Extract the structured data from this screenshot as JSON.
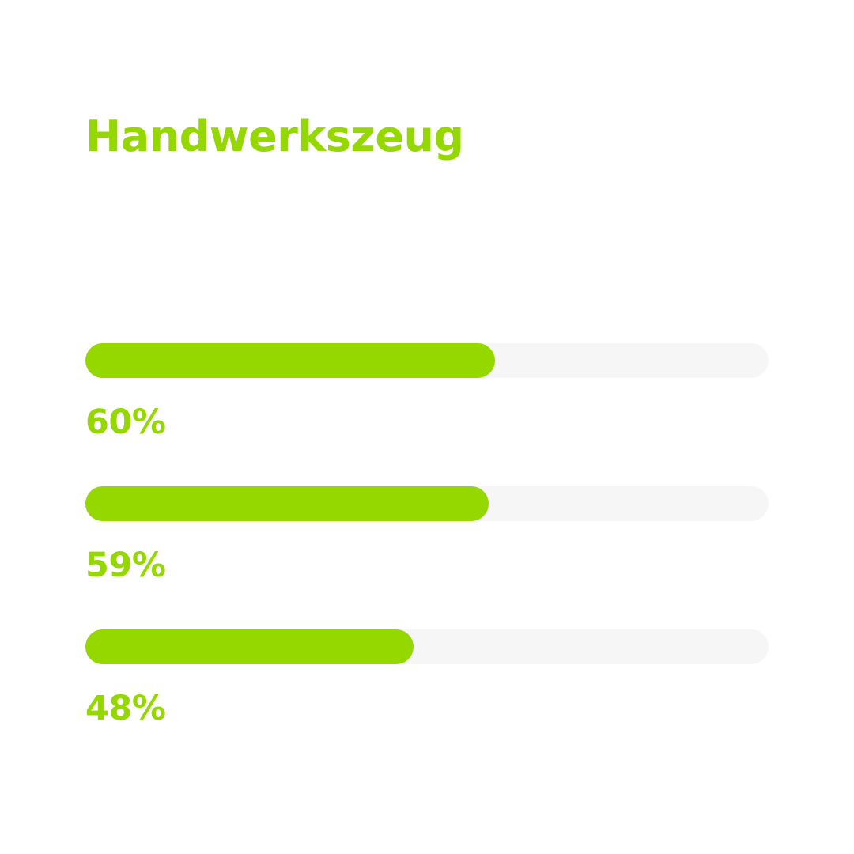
{
  "title": "Handwerkszeug",
  "colors": {
    "accent": "#95d800",
    "track": "#f6f6f6",
    "background": "#ffffff"
  },
  "chart_data": {
    "type": "bar",
    "orientation": "horizontal",
    "title": "Handwerkszeug",
    "values": [
      60,
      59,
      48
    ],
    "labels": [
      "60%",
      "59%",
      "48%"
    ],
    "ylim": [
      0,
      100
    ]
  }
}
